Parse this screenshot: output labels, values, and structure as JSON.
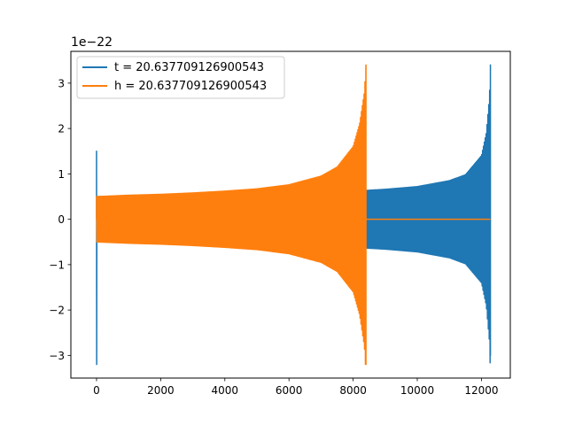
{
  "chart_data": {
    "type": "line",
    "title": "",
    "xlabel": "",
    "ylabel": "",
    "offset_label": "1e−22",
    "xlim": [
      -800,
      12900
    ],
    "ylim": [
      -3.5,
      3.7
    ],
    "xticks": [
      0,
      2000,
      4000,
      6000,
      8000,
      10000,
      12000
    ],
    "xtick_labels": [
      "0",
      "2000",
      "4000",
      "6000",
      "8000",
      "10000",
      "12000"
    ],
    "yticks": [
      -3,
      -2,
      -1,
      0,
      1,
      2,
      3
    ],
    "ytick_labels": [
      "−3",
      "−2",
      "−1",
      "0",
      "1",
      "2",
      "3"
    ],
    "grid": false,
    "legend_position": "upper-left",
    "series": [
      {
        "name": "t = 20.637709126900543",
        "color": "#1f77b4",
        "x_start": 0,
        "x_end": 12280,
        "start_spike": {
          "x": 0,
          "max": 1.5,
          "min": -3.2
        },
        "envelope_x": [
          0,
          2000,
          4000,
          6000,
          8000,
          9000,
          10000,
          11000,
          11500,
          12000,
          12150,
          12250,
          12280
        ],
        "envelope_y": [
          0.5,
          0.52,
          0.55,
          0.58,
          0.62,
          0.66,
          0.72,
          0.85,
          0.98,
          1.4,
          1.9,
          2.7,
          3.4
        ],
        "end_min": -3.0
      },
      {
        "name": "h = 20.637709126900543",
        "color": "#ff7f0e",
        "x_start": 0,
        "x_end": 12280,
        "signal_end": 8400,
        "envelope_x": [
          0,
          1000,
          2000,
          3000,
          4000,
          5000,
          6000,
          7000,
          7500,
          8000,
          8200,
          8350,
          8400
        ],
        "envelope_y": [
          0.5,
          0.53,
          0.55,
          0.58,
          0.62,
          0.67,
          0.76,
          0.95,
          1.15,
          1.6,
          2.1,
          2.8,
          3.4
        ],
        "end_min": -3.2
      }
    ]
  }
}
